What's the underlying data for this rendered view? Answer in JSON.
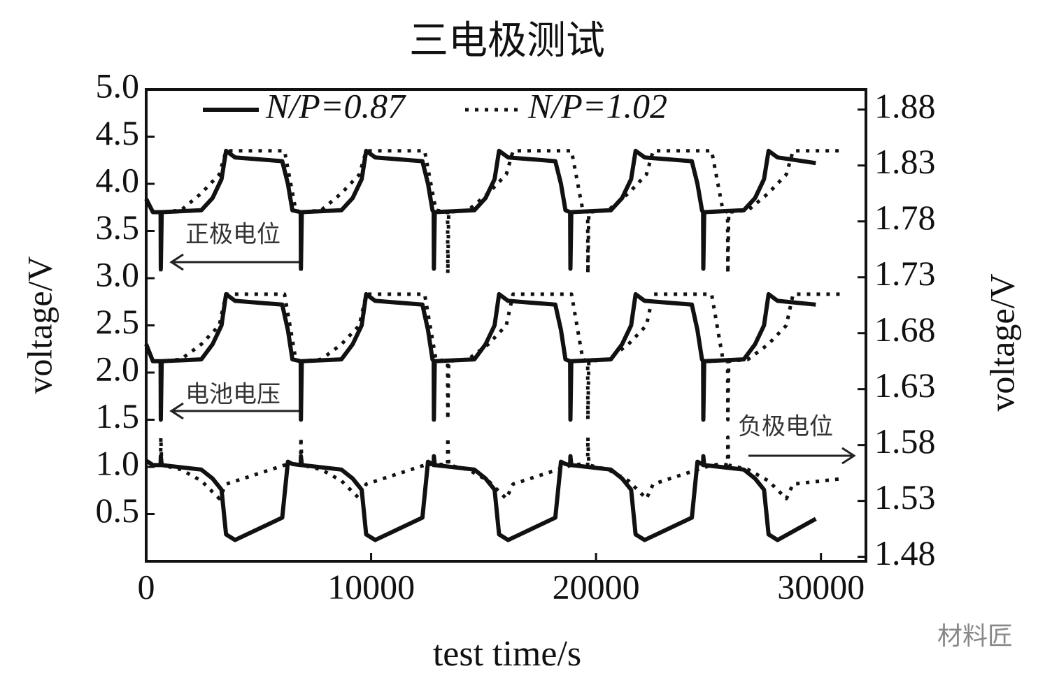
{
  "chart_data": {
    "type": "line",
    "title": "三电极测试",
    "x_label": "test time/s",
    "y_label": "voltage/V",
    "y2_label": "voltage/V",
    "xlim": [
      0,
      32000
    ],
    "xticks": [
      0,
      10000,
      20000,
      30000
    ],
    "ylim": [
      0,
      5
    ],
    "yticks": [
      0.5,
      {
        "value": 1,
        "label": "1.0"
      },
      1.5,
      {
        "value": 2,
        "label": "2.0"
      },
      2.5,
      {
        "value": 3,
        "label": "3.0"
      },
      3.5,
      {
        "value": 4,
        "label": "4.0"
      },
      4.5,
      {
        "value": 5,
        "label": "5.0"
      }
    ],
    "y2lim": [
      1.476,
      1.898
    ],
    "y2ticks": [
      1.48,
      1.53,
      1.58,
      1.63,
      1.68,
      1.73,
      1.78,
      1.83,
      1.88
    ],
    "legend": "top",
    "annotations": [
      "正极电位",
      "电池电压",
      "负极电位"
    ],
    "watermark": "材料匠",
    "series": [
      {
        "name": "N/P=0.87",
        "color": "#111111",
        "dash": "solid",
        "lines": [
          {
            "x": [
              0,
              300,
              640,
              650,
              690,
              2450,
              2950,
              3350,
              3550,
              3950,
              6050,
              6300,
              6500,
              6870,
              6880,
              6920,
              8680,
              9180,
              9580,
              9780,
              10180,
              12280,
              12530,
              12730,
              12780,
              12790,
              12830,
              14590,
              15090,
              15490,
              15690,
              16090,
              18190,
              18440,
              18640,
              18850,
              18860,
              18900,
              20660,
              21160,
              21560,
              21760,
              22160,
              24260,
              24510,
              24710,
              24760,
              24770,
              24810,
              26570,
              27070,
              27470,
              27670,
              28070,
              29770
            ],
            "values": [
              3.84,
              3.7,
              3.7,
              3.1,
              3.7,
              3.72,
              3.85,
              4.05,
              4.35,
              4.28,
              4.24,
              4.0,
              3.72,
              3.7,
              3.1,
              3.7,
              3.72,
              3.85,
              4.05,
              4.35,
              4.28,
              4.24,
              4.0,
              3.72,
              3.7,
              3.1,
              3.7,
              3.72,
              3.85,
              4.05,
              4.35,
              4.28,
              4.24,
              4.0,
              3.72,
              3.7,
              3.1,
              3.7,
              3.72,
              3.85,
              4.05,
              4.35,
              4.28,
              4.24,
              4.0,
              3.72,
              3.7,
              3.1,
              3.7,
              3.72,
              3.85,
              4.05,
              4.35,
              4.28,
              4.22
            ]
          },
          {
            "x": [
              0,
              300,
              640,
              650,
              690,
              2450,
              2950,
              3350,
              3550,
              3950,
              6050,
              6300,
              6500,
              6870,
              6880,
              6920,
              8680,
              9180,
              9580,
              9780,
              10180,
              12280,
              12530,
              12730,
              12780,
              12790,
              12830,
              14590,
              15090,
              15490,
              15690,
              16090,
              18190,
              18440,
              18640,
              18850,
              18860,
              18900,
              20660,
              21160,
              21560,
              21760,
              22160,
              24260,
              24510,
              24710,
              24760,
              24770,
              24810,
              26570,
              27070,
              27470,
              27670,
              28070,
              29770
            ],
            "values": [
              2.3,
              2.12,
              2.12,
              1.5,
              2.12,
              2.14,
              2.3,
              2.5,
              2.83,
              2.76,
              2.72,
              2.45,
              2.14,
              2.12,
              1.5,
              2.12,
              2.14,
              2.3,
              2.5,
              2.83,
              2.76,
              2.72,
              2.45,
              2.14,
              2.12,
              1.5,
              2.12,
              2.14,
              2.3,
              2.5,
              2.83,
              2.76,
              2.72,
              2.45,
              2.14,
              2.12,
              1.5,
              2.12,
              2.14,
              2.3,
              2.5,
              2.83,
              2.76,
              2.72,
              2.45,
              2.14,
              2.12,
              1.5,
              2.12,
              2.14,
              2.3,
              2.5,
              2.83,
              2.76,
              2.72
            ]
          },
          {
            "axis": "y2",
            "x": [
              0,
              300,
              640,
              650,
              690,
              2450,
              2950,
              3350,
              3550,
              3950,
              6050,
              6300,
              6500,
              6870,
              6880,
              6920,
              8680,
              9180,
              9580,
              9780,
              10180,
              12280,
              12530,
              12730,
              12780,
              12790,
              12830,
              14590,
              15090,
              15490,
              15690,
              16090,
              18190,
              18440,
              18640,
              18850,
              18860,
              18900,
              20660,
              21160,
              21560,
              21760,
              22160,
              24260,
              24510,
              24710,
              24760,
              24770,
              24810,
              26570,
              27070,
              27470,
              27670,
              28070,
              29770
            ],
            "values": [
              1.566,
              1.562,
              1.562,
              1.57,
              1.562,
              1.558,
              1.55,
              1.54,
              1.5,
              1.495,
              1.515,
              1.565,
              1.563,
              1.562,
              1.57,
              1.562,
              1.558,
              1.55,
              1.54,
              1.5,
              1.495,
              1.515,
              1.565,
              1.563,
              1.562,
              1.57,
              1.562,
              1.558,
              1.55,
              1.54,
              1.5,
              1.495,
              1.515,
              1.565,
              1.563,
              1.562,
              1.57,
              1.562,
              1.558,
              1.55,
              1.54,
              1.5,
              1.495,
              1.515,
              1.565,
              1.563,
              1.562,
              1.57,
              1.562,
              1.558,
              1.55,
              1.54,
              1.5,
              1.495,
              1.514
            ]
          }
        ]
      },
      {
        "name": "N/P=1.02",
        "color": "#111111",
        "dash": "dotted",
        "lines": [
          {
            "x": [
              0,
              300,
              640,
              650,
              690,
              1550,
              2450,
              3250,
              3550,
              6150,
              6650,
              6870,
              6880,
              6920,
              7780,
              8680,
              9480,
              9780,
              12380,
              12880,
              13400,
              13410,
              13450,
              14310,
              15210,
              16010,
              16310,
              18910,
              19410,
              19630,
              19640,
              19680,
              20540,
              21440,
              22240,
              22540,
              25140,
              25640,
              25850,
              25860,
              25900,
              26760,
              27660,
              28460,
              28760,
              31000
            ],
            "values": [
              3.84,
              3.7,
              3.7,
              3.05,
              3.7,
              3.72,
              3.9,
              4.1,
              4.35,
              4.35,
              3.72,
              3.7,
              3.05,
              3.7,
              3.72,
              3.9,
              4.1,
              4.35,
              4.35,
              3.72,
              3.7,
              3.05,
              3.7,
              3.72,
              3.9,
              4.1,
              4.35,
              4.35,
              3.72,
              3.7,
              3.05,
              3.7,
              3.72,
              3.9,
              4.1,
              4.35,
              4.35,
              3.72,
              3.7,
              3.05,
              3.7,
              3.72,
              3.9,
              4.1,
              4.35,
              4.35
            ]
          },
          {
            "x": [
              0,
              300,
              640,
              650,
              690,
              1550,
              2450,
              3250,
              3550,
              6150,
              6650,
              6870,
              6880,
              6920,
              7780,
              8680,
              9480,
              9780,
              12380,
              12880,
              13400,
              13410,
              13450,
              14310,
              15210,
              16010,
              16310,
              18910,
              19410,
              19630,
              19640,
              19680,
              20540,
              21440,
              22240,
              22540,
              25140,
              25640,
              25850,
              25860,
              25900,
              26760,
              27660,
              28460,
              28760,
              31000
            ],
            "values": [
              2.3,
              2.12,
              2.12,
              1.5,
              2.12,
              2.14,
              2.3,
              2.5,
              2.83,
              2.83,
              2.14,
              2.12,
              1.5,
              2.12,
              2.14,
              2.3,
              2.5,
              2.83,
              2.83,
              2.14,
              2.12,
              1.5,
              2.12,
              2.14,
              2.3,
              2.5,
              2.83,
              2.83,
              2.14,
              2.12,
              1.5,
              2.12,
              2.14,
              2.3,
              2.5,
              2.83,
              2.83,
              2.14,
              2.12,
              1.5,
              2.12,
              2.14,
              2.3,
              2.5,
              2.83,
              2.83
            ]
          },
          {
            "axis": "y2",
            "x": [
              0,
              300,
              640,
              650,
              690,
              1550,
              2450,
              3250,
              3550,
              6150,
              6650,
              6870,
              6880,
              6920,
              7780,
              8680,
              9480,
              9780,
              12380,
              12880,
              13400,
              13410,
              13450,
              14310,
              15210,
              16010,
              16310,
              18910,
              19410,
              19630,
              19640,
              19680,
              20540,
              21440,
              22240,
              22540,
              25140,
              25640,
              25850,
              25860,
              25900,
              26760,
              27660,
              28460,
              28760,
              31000
            ],
            "values": [
              1.566,
              1.562,
              1.562,
              1.587,
              1.562,
              1.558,
              1.548,
              1.532,
              1.545,
              1.562,
              1.563,
              1.562,
              1.587,
              1.562,
              1.558,
              1.548,
              1.532,
              1.545,
              1.562,
              1.563,
              1.562,
              1.587,
              1.562,
              1.558,
              1.548,
              1.532,
              1.545,
              1.562,
              1.563,
              1.562,
              1.587,
              1.562,
              1.558,
              1.548,
              1.532,
              1.545,
              1.562,
              1.563,
              1.562,
              1.587,
              1.562,
              1.558,
              1.548,
              1.532,
              1.545,
              1.55
            ]
          }
        ]
      }
    ]
  }
}
